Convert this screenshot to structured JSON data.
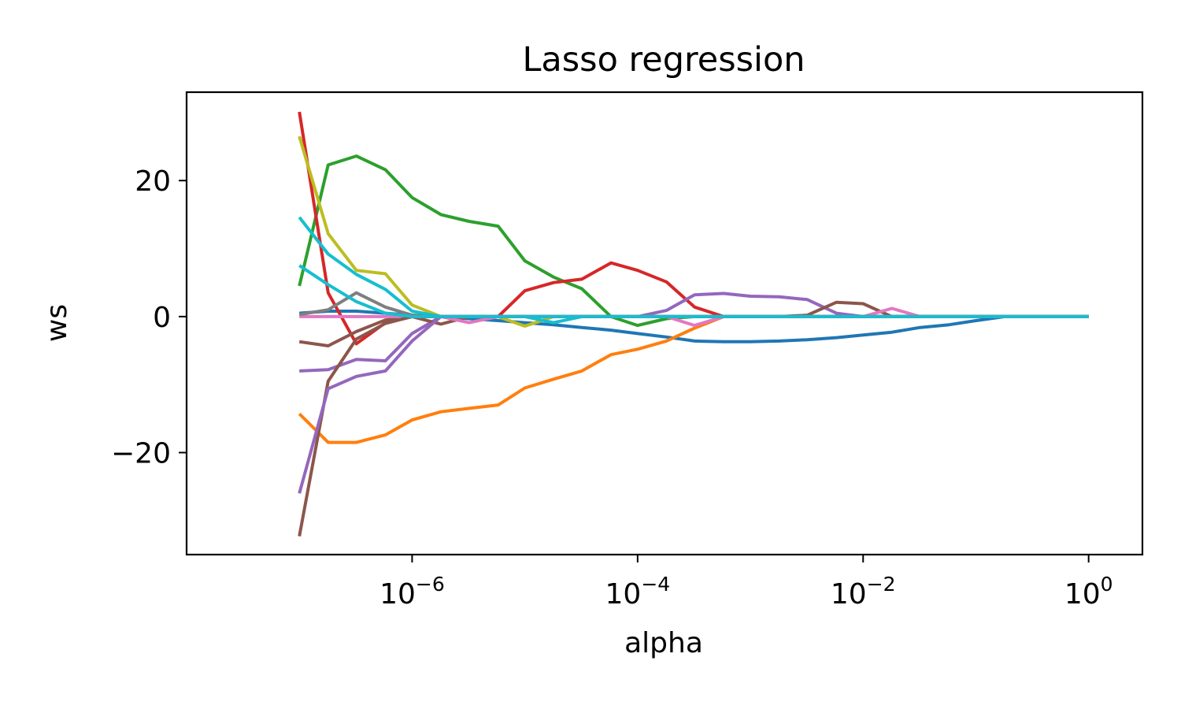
{
  "chart_data": {
    "type": "line",
    "title": "Lasso regression",
    "xlabel": "alpha",
    "ylabel": "ws",
    "xscale": "log",
    "xlim": [
      1e-08,
      3
    ],
    "ylim": [
      -35,
      33
    ],
    "grid": false,
    "legend": "none",
    "xticks": [
      {
        "value": 1e-06,
        "base": "10",
        "exp": "−6"
      },
      {
        "value": 0.0001,
        "base": "10",
        "exp": "−4"
      },
      {
        "value": 0.01,
        "base": "10",
        "exp": "−2"
      },
      {
        "value": 1,
        "base": "10",
        "exp": "0"
      }
    ],
    "yticks": [
      {
        "value": 20,
        "label": "20"
      },
      {
        "value": 0,
        "label": "0"
      },
      {
        "value": -20,
        "label": "−20"
      }
    ],
    "x": [
      1e-07,
      1.8e-07,
      3.2e-07,
      5.8e-07,
      1e-06,
      1.8e-06,
      3.2e-06,
      5.8e-06,
      1e-05,
      1.8e-05,
      3.2e-05,
      5.8e-05,
      0.0001,
      0.00018,
      0.00032,
      0.00058,
      0.001,
      0.0018,
      0.0032,
      0.0058,
      0.01,
      0.018,
      0.032,
      0.058,
      0.1,
      0.18,
      0.32,
      0.58,
      1
    ],
    "series": [
      {
        "color": "#1f77b4",
        "values": [
          0.5,
          0.8,
          0.8,
          0.5,
          0.2,
          0,
          -0.3,
          -0.6,
          -0.9,
          -1.2,
          -1.6,
          -2.0,
          -2.5,
          -3.0,
          -3.6,
          -3.7,
          -3.7,
          -3.6,
          -3.4,
          -3.1,
          -2.7,
          -2.3,
          -1.6,
          -1.2,
          -0.6,
          0,
          0,
          0,
          0
        ]
      },
      {
        "color": "#ff7f0e",
        "values": [
          -14.3,
          -18.5,
          -18.5,
          -17.4,
          -15.2,
          -14.0,
          -13.5,
          -13.0,
          -10.5,
          -9.2,
          -8.0,
          -5.6,
          -4.8,
          -3.6,
          -1.7,
          0,
          0,
          0,
          0,
          0,
          0,
          0,
          0,
          0,
          0,
          0,
          0,
          0,
          0
        ]
      },
      {
        "color": "#2ca02c",
        "values": [
          4.5,
          22.3,
          23.6,
          21.6,
          17.5,
          15.0,
          14.0,
          13.3,
          8.2,
          5.8,
          4.1,
          0,
          -1.3,
          -0.3,
          0,
          0,
          0,
          0,
          0,
          0,
          0,
          0,
          0,
          0,
          0,
          0,
          0,
          0,
          0
        ]
      },
      {
        "color": "#d62728",
        "values": [
          30.1,
          3.5,
          -4.0,
          -0.9,
          0,
          0,
          0,
          0,
          3.8,
          5.0,
          5.5,
          7.9,
          6.8,
          5.1,
          1.4,
          0,
          0,
          0,
          0,
          0,
          0,
          0,
          0,
          0,
          0,
          0,
          0,
          0,
          0
        ]
      },
      {
        "color": "#9467bd",
        "values": [
          -8.0,
          -7.8,
          -6.3,
          -6.5,
          -2.5,
          0,
          0,
          0,
          0,
          0,
          0,
          0,
          0,
          0.9,
          3.2,
          3.4,
          3.0,
          2.9,
          2.5,
          0.5,
          0,
          0,
          0,
          0,
          0,
          0,
          0,
          0,
          0
        ]
      },
      {
        "color": "#8c564b",
        "values": [
          -3.7,
          -4.3,
          -2.2,
          -0.5,
          0,
          -1.1,
          0,
          0,
          0,
          0,
          0,
          0,
          0,
          0,
          0,
          0,
          0,
          0,
          0.2,
          2.1,
          1.9,
          0,
          0,
          0,
          0,
          0,
          0,
          0,
          0
        ]
      },
      {
        "color": "#e377c2",
        "values": [
          0,
          0,
          0,
          0,
          0,
          0,
          -0.9,
          0,
          0,
          0,
          0,
          0,
          0,
          0,
          -1.3,
          0,
          0,
          0,
          0,
          0,
          0,
          1.2,
          0,
          0,
          0,
          0,
          0,
          0,
          0
        ]
      },
      {
        "color": "#7f7f7f",
        "values": [
          0.3,
          1.0,
          3.5,
          1.4,
          0.2,
          0,
          0,
          0,
          0,
          0,
          0,
          0,
          0,
          0,
          0,
          0,
          0,
          0,
          0,
          0,
          0,
          0,
          0,
          0,
          0,
          0,
          0,
          0,
          0
        ]
      },
      {
        "color": "#bcbd22",
        "values": [
          26.5,
          12.2,
          6.8,
          6.3,
          1.7,
          0,
          0,
          0,
          -1.4,
          0,
          0,
          0,
          0,
          0,
          0,
          0,
          0,
          0,
          0,
          0,
          0,
          0,
          0,
          0,
          0,
          0,
          0,
          0,
          0
        ]
      },
      {
        "color": "#17becf",
        "values": [
          14.6,
          9.2,
          6.2,
          4.0,
          0.8,
          0,
          0,
          0,
          0,
          -0.9,
          0,
          0,
          0,
          0,
          0,
          0,
          0,
          0,
          0,
          0,
          0,
          0,
          0,
          0,
          0,
          0,
          0,
          0,
          0
        ]
      },
      {
        "color": "#8c564b",
        "values": [
          -32.3,
          -9.5,
          -3.3,
          -1.0,
          0,
          0,
          0,
          0,
          0,
          0,
          0,
          0,
          0,
          0,
          0,
          0,
          0,
          0,
          0,
          0,
          0,
          0,
          0,
          0,
          0,
          0,
          0,
          0,
          0
        ]
      },
      {
        "color": "#9467bd",
        "values": [
          -26.0,
          -10.6,
          -8.8,
          -8.0,
          -3.6,
          0,
          0,
          0,
          0,
          0,
          0,
          0,
          0,
          0,
          0,
          0,
          0,
          0,
          0,
          0,
          0,
          0,
          0,
          0,
          0,
          0,
          0,
          0,
          0
        ]
      },
      {
        "color": "#17becf",
        "values": [
          7.5,
          4.7,
          2.2,
          0.5,
          0,
          0,
          0,
          0,
          0,
          0,
          0,
          0,
          0,
          0,
          0,
          0,
          0,
          0,
          0,
          0,
          0,
          0,
          0,
          0,
          0,
          0,
          0,
          0,
          0
        ]
      }
    ]
  }
}
